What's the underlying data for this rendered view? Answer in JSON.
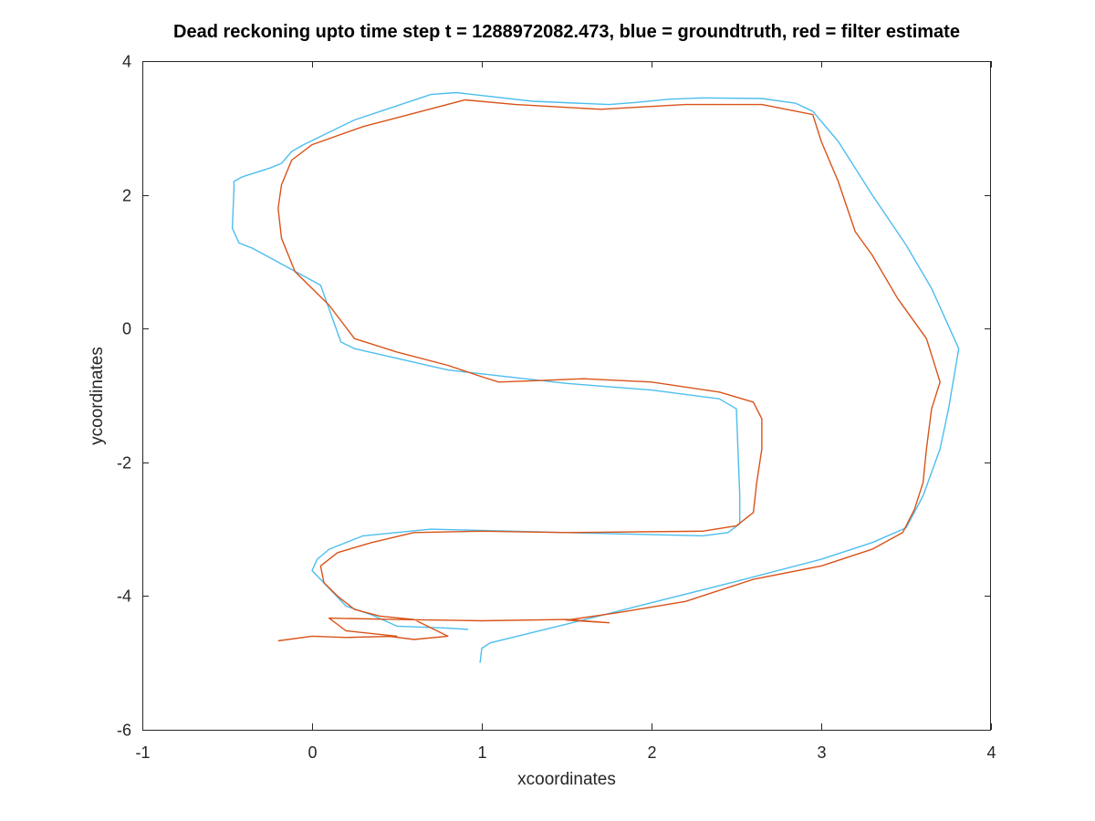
{
  "chart_data": {
    "type": "line",
    "title": "Dead reckoning upto time step t = 1288972082.473, blue = groundtruth, red = filter estimate",
    "xlabel": "xcoordinates",
    "ylabel": "ycoordinates",
    "xlim": [
      -1,
      4
    ],
    "ylim": [
      -6,
      4
    ],
    "xticks": [
      -1,
      0,
      1,
      2,
      3,
      4
    ],
    "yticks": [
      -6,
      -4,
      -2,
      0,
      2,
      4
    ],
    "grid": false,
    "legend": "none",
    "series": [
      {
        "color": "#4DBEEE",
        "points": [
          [
            0.99,
            -5.0
          ],
          [
            1.0,
            -4.78
          ],
          [
            1.05,
            -4.7
          ],
          [
            1.5,
            -4.42
          ],
          [
            2.0,
            -4.1
          ],
          [
            2.5,
            -3.78
          ],
          [
            3.0,
            -3.45
          ],
          [
            3.3,
            -3.2
          ],
          [
            3.5,
            -2.98
          ],
          [
            3.6,
            -2.5
          ],
          [
            3.7,
            -1.8
          ],
          [
            3.75,
            -1.2
          ],
          [
            3.81,
            -0.3
          ],
          [
            3.65,
            0.6
          ],
          [
            3.5,
            1.25
          ],
          [
            3.3,
            2.0
          ],
          [
            3.1,
            2.8
          ],
          [
            2.95,
            3.25
          ],
          [
            2.85,
            3.37
          ],
          [
            2.65,
            3.44
          ],
          [
            2.3,
            3.45
          ],
          [
            2.1,
            3.43
          ],
          [
            1.9,
            3.38
          ],
          [
            1.75,
            3.35
          ],
          [
            1.3,
            3.4
          ],
          [
            0.85,
            3.53
          ],
          [
            0.7,
            3.5
          ],
          [
            0.25,
            3.12
          ],
          [
            -0.05,
            2.75
          ],
          [
            -0.12,
            2.65
          ],
          [
            -0.18,
            2.47
          ],
          [
            -0.25,
            2.4
          ],
          [
            -0.41,
            2.27
          ],
          [
            -0.46,
            2.2
          ],
          [
            -0.46,
            2.1
          ],
          [
            -0.47,
            1.5
          ],
          [
            -0.43,
            1.28
          ],
          [
            -0.35,
            1.2
          ],
          [
            0.05,
            0.65
          ],
          [
            0.17,
            -0.2
          ],
          [
            0.25,
            -0.3
          ],
          [
            0.8,
            -0.62
          ],
          [
            1.5,
            -0.82
          ],
          [
            2.0,
            -0.92
          ],
          [
            2.4,
            -1.05
          ],
          [
            2.5,
            -1.2
          ],
          [
            2.52,
            -2.5
          ],
          [
            2.52,
            -2.92
          ],
          [
            2.45,
            -3.05
          ],
          [
            2.3,
            -3.1
          ],
          [
            1.5,
            -3.05
          ],
          [
            0.7,
            -3.0
          ],
          [
            0.3,
            -3.1
          ],
          [
            0.1,
            -3.3
          ],
          [
            0.03,
            -3.45
          ],
          [
            0.0,
            -3.62
          ],
          [
            0.05,
            -3.75
          ],
          [
            0.2,
            -4.15
          ],
          [
            0.35,
            -4.28
          ],
          [
            0.5,
            -4.45
          ],
          [
            0.8,
            -4.48
          ],
          [
            0.92,
            -4.5
          ]
        ]
      },
      {
        "color": "#D95319",
        "points": [
          [
            -0.2,
            -4.67
          ],
          [
            0.0,
            -4.6
          ],
          [
            0.2,
            -4.62
          ],
          [
            0.5,
            -4.6
          ],
          [
            0.2,
            -4.52
          ],
          [
            0.1,
            -4.33
          ],
          [
            0.5,
            -4.35
          ],
          [
            1.0,
            -4.37
          ],
          [
            1.5,
            -4.35
          ],
          [
            1.75,
            -4.4
          ],
          [
            1.5,
            -4.36
          ],
          [
            1.8,
            -4.25
          ],
          [
            2.2,
            -4.08
          ],
          [
            2.6,
            -3.75
          ],
          [
            3.0,
            -3.55
          ],
          [
            3.3,
            -3.3
          ],
          [
            3.48,
            -3.05
          ],
          [
            3.55,
            -2.7
          ],
          [
            3.6,
            -2.3
          ],
          [
            3.62,
            -1.8
          ],
          [
            3.65,
            -1.2
          ],
          [
            3.7,
            -0.8
          ],
          [
            3.62,
            -0.15
          ],
          [
            3.45,
            0.45
          ],
          [
            3.3,
            1.1
          ],
          [
            3.2,
            1.45
          ],
          [
            3.1,
            2.2
          ],
          [
            3.0,
            2.8
          ],
          [
            2.95,
            3.2
          ],
          [
            2.65,
            3.35
          ],
          [
            2.2,
            3.35
          ],
          [
            1.7,
            3.28
          ],
          [
            1.2,
            3.35
          ],
          [
            0.9,
            3.42
          ],
          [
            0.6,
            3.22
          ],
          [
            0.3,
            3.02
          ],
          [
            0.0,
            2.75
          ],
          [
            -0.12,
            2.52
          ],
          [
            -0.18,
            2.15
          ],
          [
            -0.2,
            1.8
          ],
          [
            -0.18,
            1.35
          ],
          [
            -0.1,
            0.85
          ],
          [
            0.1,
            0.35
          ],
          [
            0.25,
            -0.15
          ],
          [
            0.5,
            -0.35
          ],
          [
            0.8,
            -0.55
          ],
          [
            1.0,
            -0.72
          ],
          [
            1.1,
            -0.8
          ],
          [
            1.3,
            -0.78
          ],
          [
            1.6,
            -0.75
          ],
          [
            2.0,
            -0.8
          ],
          [
            2.4,
            -0.95
          ],
          [
            2.6,
            -1.1
          ],
          [
            2.65,
            -1.35
          ],
          [
            2.65,
            -1.8
          ],
          [
            2.62,
            -2.3
          ],
          [
            2.6,
            -2.75
          ],
          [
            2.5,
            -2.95
          ],
          [
            2.3,
            -3.03
          ],
          [
            1.5,
            -3.05
          ],
          [
            1.0,
            -3.03
          ],
          [
            0.6,
            -3.05
          ],
          [
            0.35,
            -3.2
          ],
          [
            0.15,
            -3.35
          ],
          [
            0.05,
            -3.55
          ],
          [
            0.07,
            -3.8
          ],
          [
            0.15,
            -4.0
          ],
          [
            0.25,
            -4.2
          ],
          [
            0.4,
            -4.3
          ],
          [
            0.6,
            -4.35
          ],
          [
            0.8,
            -4.6
          ],
          [
            0.6,
            -4.65
          ],
          [
            0.45,
            -4.6
          ]
        ]
      }
    ]
  }
}
